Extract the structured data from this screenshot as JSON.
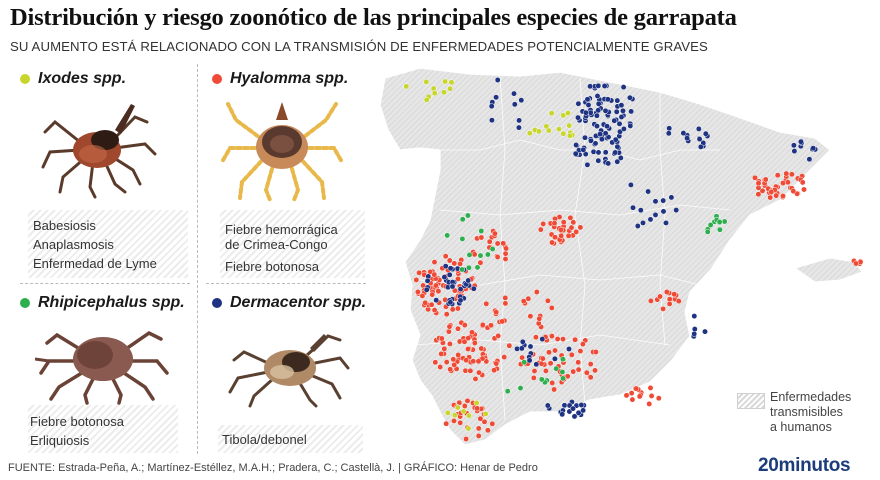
{
  "title": "Distribución y riesgo zoonótico de las principales especies de garrapata",
  "subtitle": "SU AUMENTO ESTÁ RELACIONADO CON LA TRANSMISIÓN DE ENFERMEDADES POTENCIALMENTE GRAVES",
  "colors": {
    "ixodes": "#c8d62c",
    "hyalomma": "#ef4a35",
    "rhipicephalus": "#2fae4d",
    "dermacentor": "#1f3383"
  },
  "species": [
    {
      "key": "ixodes",
      "name": "Ixodes spp.",
      "diseases": [
        "Babesiosis",
        "Anaplasmosis",
        "Enfermedad de Lyme"
      ]
    },
    {
      "key": "hyalomma",
      "name": "Hyalomma spp.",
      "diseases": [
        "Fiebre hemorrágica",
        "de Crimea-Congo",
        "Fiebre botonosa"
      ]
    },
    {
      "key": "rhipicephalus",
      "name": "Rhipicephalus spp.",
      "diseases": [
        "Fiebre botonosa",
        "Erliquiosis"
      ]
    },
    {
      "key": "dermacentor",
      "name": "Dermacentor spp.",
      "diseases": [
        "Tibola/debonel"
      ]
    }
  ],
  "legend": {
    "label": "Enfermedades\ntransmisibles\na humanos"
  },
  "footer": "FUENTE: Estrada-Peña, A.; Martínez-Estéllez, M.A.H.; Pradera, C.; Castellà, J.  |  GRÁFICO: Henar de Pedro",
  "logo": "20minutos"
}
